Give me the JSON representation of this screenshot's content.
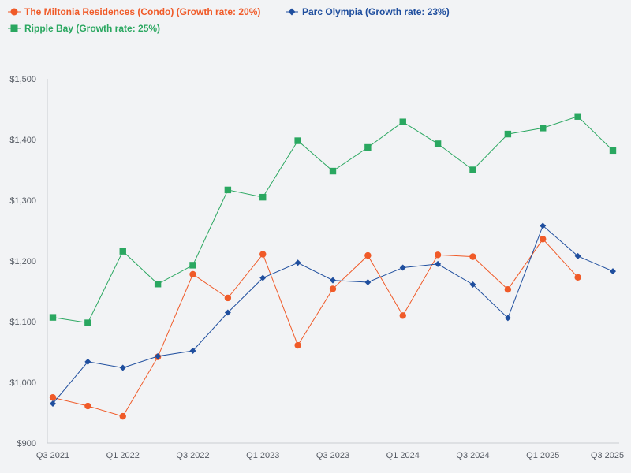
{
  "chart_data": {
    "type": "line",
    "title": "",
    "xlabel": "",
    "ylabel": "",
    "ylim": [
      900,
      1500
    ],
    "grid": false,
    "legend_position": "top-left",
    "y_ticks": [
      {
        "value": 900,
        "label": "$900"
      },
      {
        "value": 1000,
        "label": "$1,000"
      },
      {
        "value": 1100,
        "label": "$1,100"
      },
      {
        "value": 1200,
        "label": "$1,200"
      },
      {
        "value": 1300,
        "label": "$1,300"
      },
      {
        "value": 1400,
        "label": "$1,400"
      },
      {
        "value": 1500,
        "label": "$1,500"
      }
    ],
    "categories": [
      "Q3 2021",
      "Q4 2021",
      "Q1 2022",
      "Q2 2022",
      "Q3 2022",
      "Q4 2022",
      "Q1 2023",
      "Q2 2023",
      "Q3 2023",
      "Q4 2023",
      "Q1 2024",
      "Q2 2024",
      "Q3 2024",
      "Q4 2024",
      "Q1 2025",
      "Q2 2025",
      "Q3 2025"
    ],
    "x_tick_labels": [
      {
        "index": 0,
        "label": "Q3 2021"
      },
      {
        "index": 2,
        "label": "Q1 2022"
      },
      {
        "index": 4,
        "label": "Q3 2022"
      },
      {
        "index": 6,
        "label": "Q1 2023"
      },
      {
        "index": 8,
        "label": "Q3 2023"
      },
      {
        "index": 10,
        "label": "Q1 2024"
      },
      {
        "index": 12,
        "label": "Q3 2024"
      },
      {
        "index": 14,
        "label": "Q1 2025"
      },
      {
        "index": 16,
        "label": "Q3 2025"
      }
    ],
    "series": [
      {
        "name": "The Miltonia Residences (Condo) (Growth rate: 20%)",
        "color": "#f05a28",
        "marker": "circle",
        "values": [
          975,
          961,
          944,
          1042,
          1178,
          1139,
          1211,
          1061,
          1154,
          1209,
          1110,
          1210,
          1207,
          1153,
          1236,
          1173,
          null
        ]
      },
      {
        "name": "Parc Olympia (Growth rate: 23%)",
        "color": "#1f4e9e",
        "marker": "diamond",
        "values": [
          965,
          1034,
          1024,
          1043,
          1052,
          1115,
          1172,
          1197,
          1168,
          1165,
          1189,
          1195,
          1161,
          1106,
          1258,
          1208,
          1183
        ]
      },
      {
        "name": "Ripple Bay (Growth rate: 25%)",
        "color": "#2aa760",
        "marker": "square",
        "values": [
          1107,
          1098,
          1216,
          1162,
          1193,
          1317,
          1305,
          1398,
          1348,
          1387,
          1429,
          1393,
          1350,
          1409,
          1419,
          1438,
          1382
        ]
      }
    ]
  }
}
